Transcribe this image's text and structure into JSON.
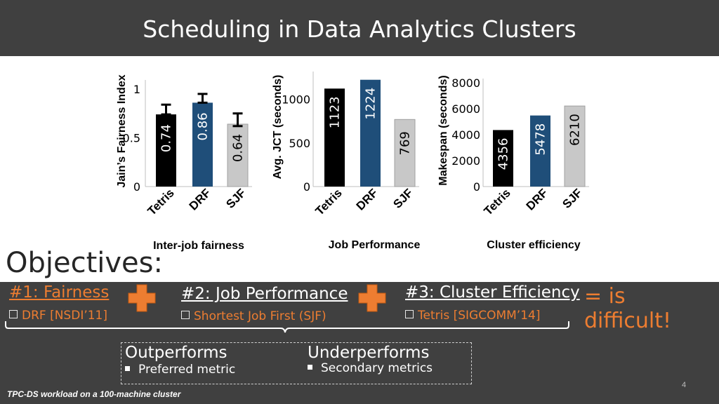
{
  "slide": {
    "title": "Scheduling in Data Analytics Clusters",
    "objectives_label": "Objectives:",
    "footnote": "TPC-DS workload on a 100-machine cluster",
    "page_number": "4",
    "equals_text": "=  is difficult!"
  },
  "objectives": [
    {
      "heading": "#1: Fairness",
      "detail": "DRF [NSDI’11]"
    },
    {
      "heading": "#2: Job Performance",
      "detail": "Shortest Job First (SJF)"
    },
    {
      "heading": "#3: Cluster Efficiency",
      "detail": "Tetris [SIGCOMM’14]"
    }
  ],
  "outcome_box": {
    "outperforms": "Outperforms",
    "preferred": "Preferred metric",
    "underperforms": "Underperforms",
    "secondary": "Secondary metrics"
  },
  "colors": {
    "tetris": "#000000",
    "drf": "#1f4e79",
    "sjf": "#c8c8c8",
    "accent": "#ed7d31",
    "dark": "#404040"
  },
  "chart_data": [
    {
      "type": "bar",
      "caption": "Inter-job fairness",
      "ylabel": "Jain’s Fairness Index",
      "categories": [
        "Tetris",
        "DRF",
        "SJF"
      ],
      "values": [
        0.74,
        0.86,
        0.64
      ],
      "value_labels": [
        "0.74",
        "0.86",
        "0.64"
      ],
      "error_high": [
        0.84,
        0.95,
        0.75
      ],
      "error_low": [
        0.74,
        0.86,
        0.62
      ],
      "yticks": [
        "0",
        "0.5",
        "1"
      ],
      "ylim": [
        0,
        1.05
      ]
    },
    {
      "type": "bar",
      "caption": "Job Performance",
      "ylabel": "Avg. JCT (seconds)",
      "categories": [
        "Tetris",
        "DRF",
        "SJF"
      ],
      "values": [
        1123,
        1224,
        769
      ],
      "value_labels": [
        "1123",
        "1224",
        "769"
      ],
      "yticks": [
        "0",
        "500",
        "1000"
      ],
      "ylim": [
        0,
        1270
      ]
    },
    {
      "type": "bar",
      "caption": "Cluster efficiency",
      "ylabel": "Makespan (seconds)",
      "categories": [
        "Tetris",
        "DRF",
        "SJF"
      ],
      "values": [
        4356,
        5478,
        6210
      ],
      "value_labels": [
        "4356",
        "5478",
        "6210"
      ],
      "yticks": [
        "0",
        "2000",
        "4000",
        "6000",
        "8000"
      ],
      "ylim": [
        0,
        8000
      ]
    }
  ]
}
